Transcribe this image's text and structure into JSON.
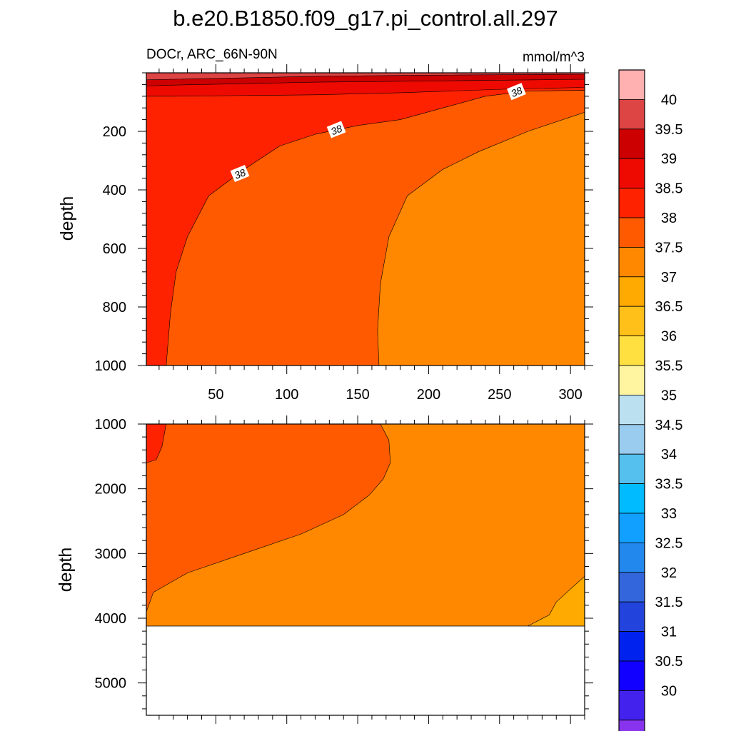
{
  "chart_data": {
    "type": "contour",
    "title": "b.e20.B1850.f09_g17.pi_control.all.297",
    "left_subtitle": "DOCr, ARC_66N-90N",
    "right_subtitle": "mmol/m^3",
    "xlabel": "",
    "ylabel": "depth",
    "x_ticks": [
      50,
      100,
      150,
      200,
      250,
      300
    ],
    "xlim": [
      1,
      310
    ],
    "panels": [
      {
        "name": "upper",
        "ylim": [
          0,
          1000
        ],
        "y_ticks": [
          200,
          400,
          600,
          800,
          1000
        ],
        "regions": [
          {
            "level": 38.0,
            "color": "#ff2200",
            "points": [
              [
                1,
                0
              ],
              [
                310,
                0
              ],
              [
                310,
                1000
              ],
              [
                1,
                1000
              ]
            ]
          },
          {
            "level": 37.5,
            "color": "#ff5a00",
            "points": [
              [
                310,
                60
              ],
              [
                270,
                62
              ],
              [
                240,
                80
              ],
              [
                210,
                120
              ],
              [
                180,
                160
              ],
              [
                150,
                180
              ],
              [
                120,
                210
              ],
              [
                95,
                250
              ],
              [
                70,
                330
              ],
              [
                45,
                420
              ],
              [
                30,
                560
              ],
              [
                22,
                680
              ],
              [
                18,
                820
              ],
              [
                15,
                1000
              ],
              [
                310,
                1000
              ]
            ]
          },
          {
            "level": 37.0,
            "color": "#ff8800",
            "points": [
              [
                310,
                135
              ],
              [
                270,
                200
              ],
              [
                235,
                270
              ],
              [
                210,
                330
              ],
              [
                185,
                420
              ],
              [
                172,
                560
              ],
              [
                166,
                720
              ],
              [
                164,
                880
              ],
              [
                165,
                1000
              ],
              [
                310,
                1000
              ]
            ]
          },
          {
            "level": 38.5,
            "color": "#ee0a00",
            "points": [
              [
                1,
                0
              ],
              [
                310,
                0
              ],
              [
                310,
                50
              ],
              [
                260,
                55
              ],
              [
                180,
                68
              ],
              [
                120,
                75
              ],
              [
                60,
                78
              ],
              [
                20,
                80
              ],
              [
                1,
                80
              ]
            ]
          },
          {
            "level": 39.0,
            "color": "#cc0000",
            "points": [
              [
                1,
                0
              ],
              [
                310,
                0
              ],
              [
                310,
                22
              ],
              [
                200,
                28
              ],
              [
                120,
                32
              ],
              [
                60,
                38
              ],
              [
                20,
                42
              ],
              [
                1,
                45
              ]
            ]
          },
          {
            "level": 39.5,
            "color": "#dd4444",
            "points": [
              [
                1,
                0
              ],
              [
                310,
                0
              ],
              [
                310,
                5
              ],
              [
                200,
                8
              ],
              [
                120,
                12
              ],
              [
                60,
                18
              ],
              [
                20,
                22
              ],
              [
                1,
                24
              ]
            ]
          }
        ],
        "contour_labels": [
          {
            "text": "38",
            "x": 67,
            "y": 345
          },
          {
            "text": "38",
            "x": 135,
            "y": 195
          },
          {
            "text": "38",
            "x": 262,
            "y": 65
          }
        ]
      },
      {
        "name": "lower",
        "ylim": [
          1000,
          5500
        ],
        "y_ticks": [
          1000,
          2000,
          3000,
          4000,
          5000
        ],
        "data_bottom": 4120,
        "regions": [
          {
            "level": 37.5,
            "color": "#ff5a00",
            "points": [
              [
                1,
                1000
              ],
              [
                310,
                1000
              ],
              [
                310,
                4120
              ],
              [
                1,
                4120
              ]
            ]
          },
          {
            "level": 37.0,
            "color": "#ff8800",
            "points": [
              [
                166,
                1000
              ],
              [
                172,
                1250
              ],
              [
                173,
                1600
              ],
              [
                168,
                1850
              ],
              [
                158,
                2100
              ],
              [
                140,
                2400
              ],
              [
                110,
                2700
              ],
              [
                70,
                3000
              ],
              [
                30,
                3300
              ],
              [
                6,
                3600
              ],
              [
                1,
                3900
              ],
              [
                1,
                4120
              ],
              [
                310,
                4120
              ],
              [
                310,
                1000
              ]
            ]
          },
          {
            "level": 38.0,
            "color": "#ff2200",
            "points": [
              [
                1,
                1000
              ],
              [
                15,
                1000
              ],
              [
                12,
                1350
              ],
              [
                8,
                1550
              ],
              [
                1,
                1600
              ]
            ]
          },
          {
            "level": 36.5,
            "color": "#ffaa00",
            "points": [
              [
                270,
                4120
              ],
              [
                285,
                3950
              ],
              [
                290,
                3750
              ],
              [
                300,
                3550
              ],
              [
                310,
                3350
              ],
              [
                310,
                4120
              ]
            ]
          }
        ],
        "contour_labels": []
      }
    ],
    "colorbar": {
      "labels": [
        "40",
        "39.5",
        "39",
        "38.5",
        "38",
        "37.5",
        "37",
        "36.5",
        "36",
        "35.5",
        "35",
        "34.5",
        "34",
        "33.5",
        "33",
        "32.5",
        "32",
        "31.5",
        "31",
        "30.5",
        "30"
      ],
      "colors_top_to_bottom": [
        "#ffb0b0",
        "#dd4444",
        "#cc0000",
        "#ee0a00",
        "#ff2200",
        "#ff5a00",
        "#ff8800",
        "#ffaa00",
        "#ffc01a",
        "#ffe040",
        "#fff4a0",
        "#bbe0f0",
        "#99ccee",
        "#55c0ee",
        "#00bbff",
        "#11a0ff",
        "#2288ee",
        "#3366dd",
        "#2244dd",
        "#0022ee",
        "#1100ff",
        "#4422ee",
        "#8833ee"
      ]
    }
  }
}
